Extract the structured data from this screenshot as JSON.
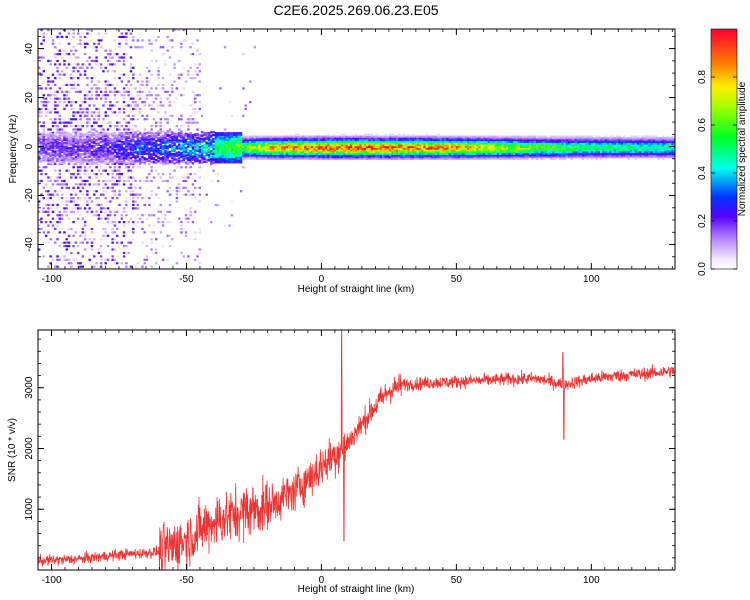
{
  "title": "C2E6.2025.269.06.23.E05",
  "chart_data": [
    {
      "type": "heatmap",
      "name": "spectrogram",
      "xlabel": "Height of straight line (km)",
      "ylabel": "Frequency (Hz)",
      "xlim": [
        -105,
        131
      ],
      "ylim": [
        -50,
        48
      ],
      "x_ticks": [
        -100,
        -50,
        0,
        50,
        100
      ],
      "x_tick_labels": [
        "-100",
        "-50",
        "0",
        "50",
        "100"
      ],
      "y_ticks": [
        -40,
        -20,
        0,
        20,
        40
      ],
      "y_tick_labels": [
        "-40",
        "-20",
        "0",
        "20",
        "40"
      ],
      "ridge": {
        "frequency_hz": 0,
        "description_points": [
          {
            "x": -90,
            "amp": 0.25
          },
          {
            "x": -70,
            "amp": 0.35
          },
          {
            "x": -50,
            "amp": 0.45
          },
          {
            "x": -30,
            "amp": 0.65
          },
          {
            "x": -20,
            "amp": 0.85
          },
          {
            "x": 0,
            "amp": 0.95
          },
          {
            "x": 20,
            "amp": 0.98
          },
          {
            "x": 50,
            "amp": 0.88
          },
          {
            "x": 80,
            "amp": 0.65
          },
          {
            "x": 100,
            "amp": 0.55
          },
          {
            "x": 131,
            "amp": 0.5
          }
        ]
      },
      "colorbar": {
        "label": "Normalized spectral amplitude",
        "range": [
          0,
          1
        ],
        "ticks": [
          0.0,
          0.2,
          0.4,
          0.6,
          0.8
        ],
        "tick_labels": [
          "0.0",
          "0.2",
          "0.4",
          "0.6",
          "0.8"
        ]
      }
    },
    {
      "type": "line",
      "name": "snr",
      "xlabel": "Height of straight line (km)",
      "ylabel": "SNR (10 * v/v)",
      "xlim": [
        -105,
        131
      ],
      "ylim": [
        0,
        3950
      ],
      "x_ticks": [
        -100,
        -50,
        0,
        50,
        100
      ],
      "x_tick_labels": [
        "-100",
        "-50",
        "0",
        "50",
        "100"
      ],
      "y_ticks": [
        1000,
        2000,
        3000
      ],
      "y_tick_labels": [
        "1000",
        "2000",
        "3000"
      ],
      "color": "#ee3333",
      "series": [
        {
          "name": "SNR",
          "x": [
            -105,
            -90,
            -75,
            -60,
            -50,
            -40,
            -30,
            -20,
            -10,
            -5,
            0,
            5,
            10,
            15,
            20,
            25,
            30,
            40,
            50,
            60,
            70,
            80,
            90,
            100,
            110,
            120,
            131
          ],
          "y": [
            150,
            180,
            250,
            300,
            500,
            800,
            950,
            1050,
            1300,
            1500,
            1700,
            1900,
            2100,
            2400,
            2700,
            2950,
            3050,
            3080,
            3100,
            3120,
            3140,
            3150,
            3050,
            3150,
            3200,
            3230,
            3280
          ]
        }
      ],
      "spikes": [
        {
          "x": 7.5,
          "y": 3950
        },
        {
          "x": 8.3,
          "y": 480
        },
        {
          "x": 89.5,
          "y": 3580
        },
        {
          "x": 89.8,
          "y": 2150
        }
      ]
    }
  ]
}
